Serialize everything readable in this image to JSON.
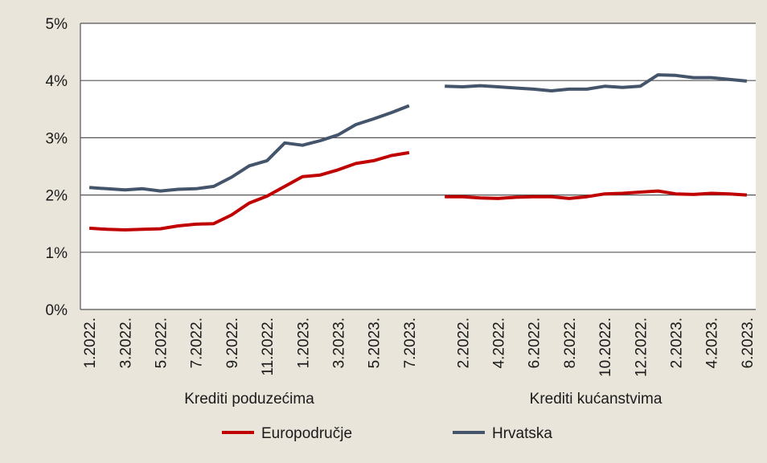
{
  "chart_data": {
    "type": "line",
    "ylim": [
      0,
      5
    ],
    "y_ticks": [
      "0%",
      "1%",
      "2%",
      "3%",
      "4%",
      "5%"
    ],
    "grid": true,
    "legend_position": "bottom",
    "groups": [
      {
        "name": "Krediti poduzećima",
        "x": [
          "1.2022.",
          "2.2022.",
          "3.2022.",
          "4.2022.",
          "5.2022.",
          "6.2022.",
          "7.2022.",
          "8.2022.",
          "9.2022.",
          "10.2022.",
          "11.2022.",
          "12.2022.",
          "1.2023.",
          "2.2023.",
          "3.2023.",
          "4.2023.",
          "5.2023.",
          "6.2023.",
          "7.2023."
        ],
        "tick_labels": [
          "1.2022.",
          "",
          "3.2022.",
          "",
          "5.2022.",
          "",
          "7.2022.",
          "",
          "9.2022.",
          "",
          "11.2022.",
          "",
          "1.2023.",
          "",
          "3.2023.",
          "",
          "5.2023.",
          "",
          "7.2023."
        ],
        "series": [
          {
            "name": "Europodručje",
            "values": [
              1.42,
              1.4,
              1.39,
              1.4,
              1.41,
              1.46,
              1.49,
              1.5,
              1.65,
              1.86,
              1.98,
              2.15,
              2.32,
              2.35,
              2.44,
              2.55,
              2.6,
              2.69,
              2.74
            ]
          },
          {
            "name": "Hrvatska",
            "values": [
              2.13,
              2.11,
              2.09,
              2.11,
              2.07,
              2.1,
              2.11,
              2.15,
              2.31,
              2.51,
              2.6,
              2.91,
              2.87,
              2.95,
              3.05,
              3.23,
              3.33,
              3.44,
              3.56
            ]
          }
        ]
      },
      {
        "name": "Krediti kućanstvima",
        "x": [
          "1.2022.",
          "2.2022.",
          "3.2022.",
          "4.2022.",
          "5.2022.",
          "6.2022.",
          "7.2022.",
          "8.2022.",
          "9.2022.",
          "10.2022.",
          "11.2022.",
          "12.2022.",
          "1.2023.",
          "2.2023.",
          "3.2023.",
          "4.2023.",
          "5.2023.",
          "6.2023."
        ],
        "tick_labels": [
          "",
          "2.2022.",
          "",
          "4.2022.",
          "",
          "6.2022.",
          "",
          "8.2022.",
          "",
          "10.2022.",
          "",
          "12.2022.",
          "",
          "2.2023.",
          "",
          "4.2023.",
          "",
          "6.2023."
        ],
        "series": [
          {
            "name": "Europodručje",
            "values": [
              1.97,
              1.97,
              1.95,
              1.94,
              1.96,
              1.97,
              1.97,
              1.94,
              1.97,
              2.02,
              2.03,
              2.05,
              2.07,
              2.02,
              2.01,
              2.03,
              2.02,
              2.0
            ]
          },
          {
            "name": "Hrvatska",
            "values": [
              3.9,
              3.89,
              3.91,
              3.89,
              3.87,
              3.85,
              3.82,
              3.85,
              3.85,
              3.9,
              3.88,
              3.9,
              4.1,
              4.09,
              4.05,
              4.05,
              4.02,
              3.99
            ]
          }
        ]
      }
    ],
    "legend": [
      {
        "name": "Europodručje",
        "color": "#c00000"
      },
      {
        "name": "Hrvatska",
        "color": "#44546a"
      }
    ]
  }
}
